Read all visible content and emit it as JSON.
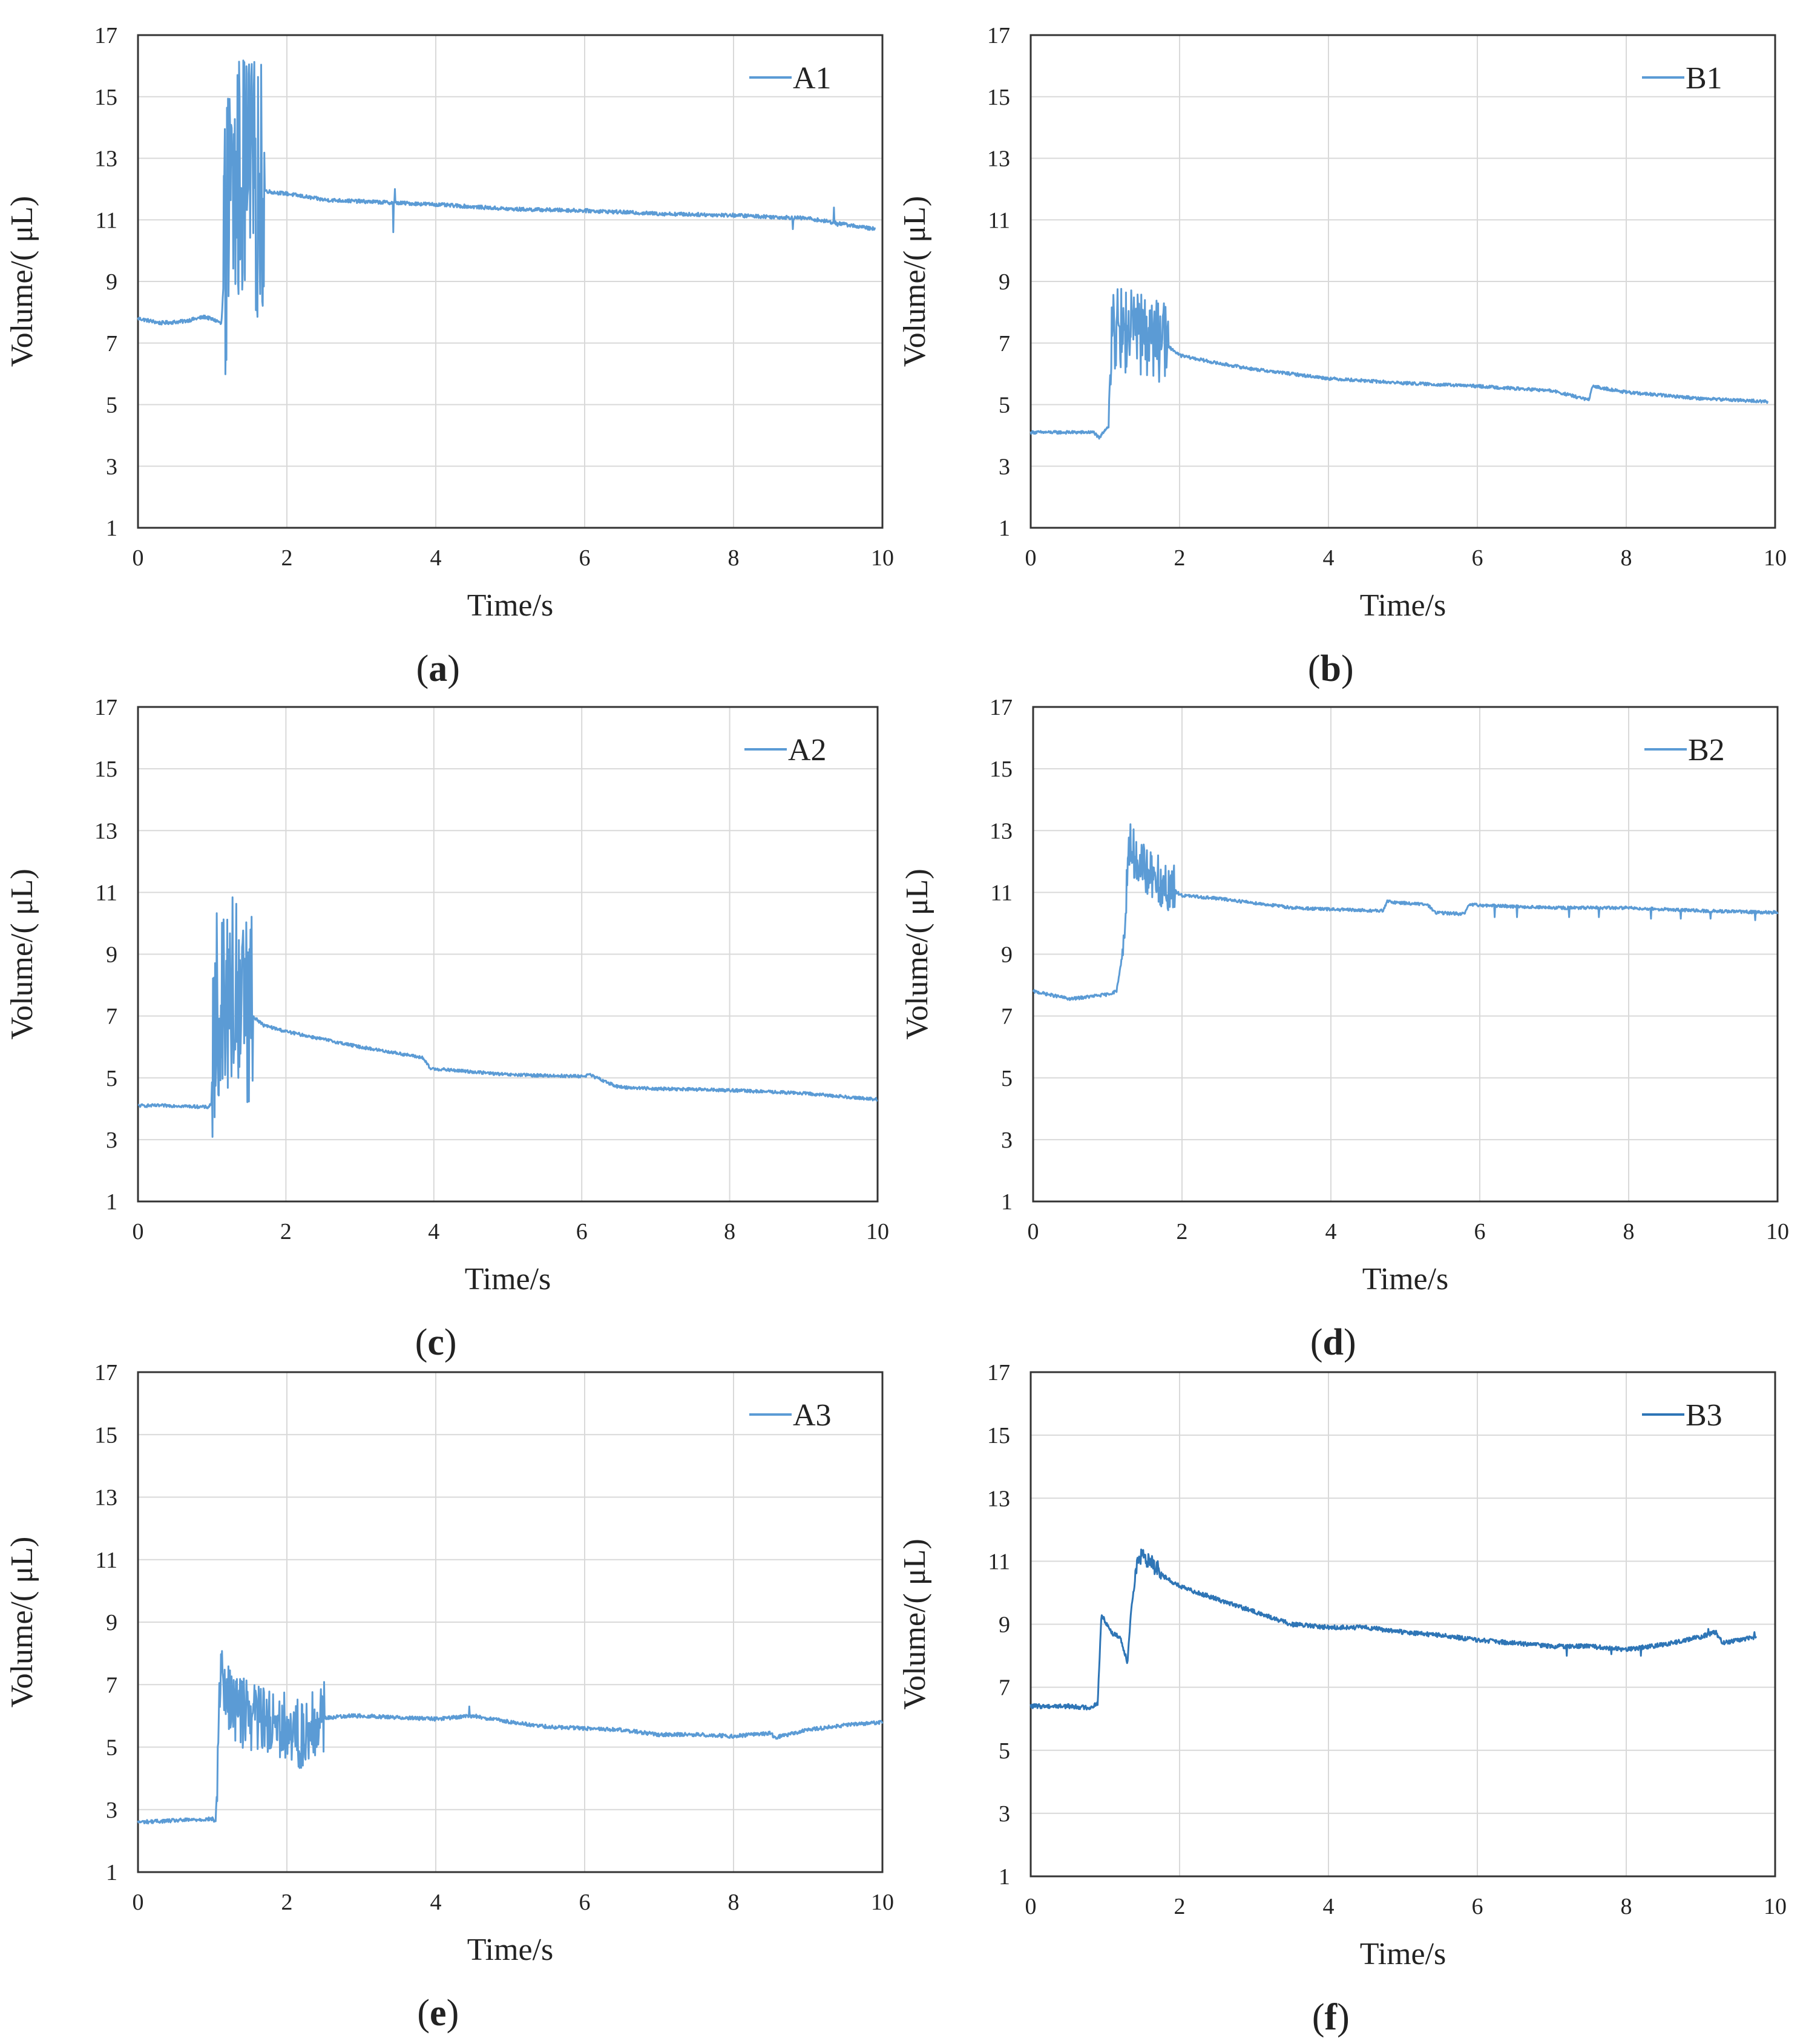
{
  "figure": {
    "panels": [
      {
        "id": "a",
        "caption_open": "(",
        "caption_letter": "a",
        "caption_close": ")"
      },
      {
        "id": "b",
        "caption_open": "(",
        "caption_letter": "b",
        "caption_close": ")"
      },
      {
        "id": "c",
        "caption_open": "(",
        "caption_letter": "c",
        "caption_close": ")"
      },
      {
        "id": "d",
        "caption_open": "(",
        "caption_letter": "d",
        "caption_close": ")"
      },
      {
        "id": "e",
        "caption_open": "(",
        "caption_letter": "e",
        "caption_close": ")"
      },
      {
        "id": "f",
        "caption_open": "(",
        "caption_letter": "f",
        "caption_close": ")"
      }
    ]
  },
  "chart_data": [
    {
      "type": "line",
      "title": "",
      "xlabel": "Time/s",
      "ylabel": "Volume/( μL)",
      "xlim": [
        0,
        10
      ],
      "ylim": [
        1,
        17
      ],
      "xticks": [
        "0",
        "2",
        "4",
        "6",
        "8",
        "10"
      ],
      "yticks": [
        "1",
        "3",
        "5",
        "7",
        "9",
        "11",
        "13",
        "15",
        "17"
      ],
      "grid": true,
      "legend": "top-right",
      "series": [
        {
          "name": "A1",
          "color": "#5b9bd5",
          "noise": 0.06,
          "spike_amp": 4.2,
          "spike_range": [
            1.15,
            1.7
          ],
          "points": [
            [
              0,
              7.8
            ],
            [
              0.3,
              7.65
            ],
            [
              0.6,
              7.7
            ],
            [
              0.9,
              7.85
            ],
            [
              1.08,
              7.7
            ],
            [
              1.12,
              7.6
            ],
            [
              1.2,
              11.2
            ],
            [
              1.4,
              12.5
            ],
            [
              1.6,
              12.0
            ],
            [
              1.8,
              11.9
            ],
            [
              2.0,
              11.85
            ],
            [
              2.5,
              11.65
            ],
            [
              3.0,
              11.6
            ],
            [
              3.5,
              11.55
            ],
            [
              4.0,
              11.5
            ],
            [
              5.0,
              11.35
            ],
            [
              6.0,
              11.3
            ],
            [
              7.0,
              11.2
            ],
            [
              8.0,
              11.15
            ],
            [
              9.0,
              11.05
            ],
            [
              9.5,
              10.85
            ],
            [
              9.9,
              10.7
            ]
          ],
          "glitches": [
            [
              3.43,
              10.6
            ],
            [
              3.45,
              12.0
            ],
            [
              8.8,
              10.7
            ],
            [
              9.35,
              11.4
            ],
            [
              9.4,
              10.8
            ]
          ]
        }
      ]
    },
    {
      "type": "line",
      "title": "",
      "xlabel": "Time/s",
      "ylabel": "Volume/( μL)",
      "xlim": [
        0,
        10
      ],
      "ylim": [
        1,
        17
      ],
      "xticks": [
        "0",
        "2",
        "4",
        "6",
        "8",
        "10"
      ],
      "yticks": [
        "1",
        "3",
        "5",
        "7",
        "9",
        "11",
        "13",
        "15",
        "17"
      ],
      "grid": true,
      "legend": "top-right",
      "series": [
        {
          "name": "B1",
          "color": "#5b9bd5",
          "noise": 0.05,
          "spike_amp": 1.4,
          "spike_range": [
            1.05,
            1.85
          ],
          "points": [
            [
              0,
              4.1
            ],
            [
              0.5,
              4.1
            ],
            [
              0.85,
              4.1
            ],
            [
              0.92,
              3.9
            ],
            [
              1.0,
              4.2
            ],
            [
              1.05,
              4.3
            ],
            [
              1.1,
              7.5
            ],
            [
              1.4,
              7.3
            ],
            [
              1.7,
              7.1
            ],
            [
              1.9,
              6.8
            ],
            [
              2.0,
              6.6
            ],
            [
              2.5,
              6.35
            ],
            [
              3.0,
              6.15
            ],
            [
              3.5,
              6.0
            ],
            [
              4.0,
              5.85
            ],
            [
              5.0,
              5.7
            ],
            [
              6.0,
              5.6
            ],
            [
              7.0,
              5.45
            ],
            [
              7.5,
              5.15
            ],
            [
              7.55,
              5.6
            ],
            [
              8.0,
              5.4
            ],
            [
              9.0,
              5.2
            ],
            [
              9.9,
              5.1
            ]
          ],
          "glitches": []
        }
      ]
    },
    {
      "type": "line",
      "title": "",
      "xlabel": "Time/s",
      "ylabel": "Volume/( μL)",
      "xlim": [
        0,
        10
      ],
      "ylim": [
        1,
        17
      ],
      "xticks": [
        "0",
        "2",
        "4",
        "6",
        "8",
        "10"
      ],
      "yticks": [
        "1",
        "3",
        "5",
        "7",
        "9",
        "11",
        "13",
        "15",
        "17"
      ],
      "grid": true,
      "legend": "top-right",
      "series": [
        {
          "name": "A2",
          "color": "#5b9bd5",
          "noise": 0.05,
          "spike_amp": 3.2,
          "spike_range": [
            1.0,
            1.55
          ],
          "points": [
            [
              0,
              4.1
            ],
            [
              0.5,
              4.1
            ],
            [
              0.95,
              4.05
            ],
            [
              1.0,
              4.2
            ],
            [
              1.05,
              7.5
            ],
            [
              1.3,
              8.0
            ],
            [
              1.5,
              7.1
            ],
            [
              1.7,
              6.7
            ],
            [
              2.0,
              6.5
            ],
            [
              2.5,
              6.25
            ],
            [
              3.0,
              6.0
            ],
            [
              3.5,
              5.8
            ],
            [
              3.85,
              5.65
            ],
            [
              3.95,
              5.3
            ],
            [
              4.5,
              5.2
            ],
            [
              5.0,
              5.1
            ],
            [
              6.0,
              5.05
            ],
            [
              6.1,
              5.1
            ],
            [
              6.5,
              4.7
            ],
            [
              7.0,
              4.65
            ],
            [
              8.0,
              4.6
            ],
            [
              9.0,
              4.5
            ],
            [
              10.0,
              4.3
            ]
          ],
          "glitches": []
        }
      ]
    },
    {
      "type": "line",
      "title": "",
      "xlabel": "Time/s",
      "ylabel": "Volume/( μL)",
      "xlim": [
        0,
        10
      ],
      "ylim": [
        1,
        17
      ],
      "xticks": [
        "0",
        "2",
        "4",
        "6",
        "8",
        "10"
      ],
      "yticks": [
        "1",
        "3",
        "5",
        "7",
        "9",
        "11",
        "13",
        "15",
        "17"
      ],
      "grid": true,
      "legend": "top-right",
      "series": [
        {
          "name": "B2",
          "color": "#5b9bd5",
          "noise": 0.05,
          "spike_amp": 0.8,
          "spike_range": [
            1.2,
            1.9
          ],
          "points": [
            [
              0,
              7.8
            ],
            [
              0.5,
              7.55
            ],
            [
              1.0,
              7.7
            ],
            [
              1.12,
              7.8
            ],
            [
              1.2,
              9.0
            ],
            [
              1.3,
              12.5
            ],
            [
              1.5,
              11.7
            ],
            [
              1.8,
              11.2
            ],
            [
              2.0,
              10.9
            ],
            [
              2.5,
              10.8
            ],
            [
              3.0,
              10.65
            ],
            [
              3.5,
              10.5
            ],
            [
              4.0,
              10.45
            ],
            [
              4.7,
              10.4
            ],
            [
              4.75,
              10.7
            ],
            [
              5.3,
              10.6
            ],
            [
              5.4,
              10.35
            ],
            [
              5.8,
              10.3
            ],
            [
              5.85,
              10.6
            ],
            [
              7.0,
              10.5
            ],
            [
              8.0,
              10.5
            ],
            [
              9.0,
              10.4
            ],
            [
              10.0,
              10.35
            ]
          ],
          "glitches": [
            [
              6.2,
              10.2
            ],
            [
              6.5,
              10.2
            ],
            [
              7.2,
              10.2
            ],
            [
              7.6,
              10.2
            ],
            [
              8.3,
              10.15
            ],
            [
              8.7,
              10.15
            ],
            [
              9.1,
              10.15
            ],
            [
              9.7,
              10.1
            ]
          ]
        }
      ]
    },
    {
      "type": "line",
      "title": "",
      "xlabel": "Time/s",
      "ylabel": "Volume/( μL)",
      "xlim": [
        0,
        10
      ],
      "ylim": [
        1,
        17
      ],
      "xticks": [
        "0",
        "2",
        "4",
        "6",
        "8",
        "10"
      ],
      "yticks": [
        "1",
        "3",
        "5",
        "7",
        "9",
        "11",
        "13",
        "15",
        "17"
      ],
      "grid": true,
      "legend": "top-right",
      "series": [
        {
          "name": "A3",
          "color": "#5b9bd5",
          "noise": 0.06,
          "spike_amp": 1.1,
          "spike_range": [
            1.05,
            2.5
          ],
          "points": [
            [
              0,
              2.6
            ],
            [
              0.5,
              2.65
            ],
            [
              1.0,
              2.7
            ],
            [
              1.05,
              2.6
            ],
            [
              1.1,
              7.2
            ],
            [
              1.3,
              6.2
            ],
            [
              1.6,
              6.0
            ],
            [
              2.0,
              5.7
            ],
            [
              2.2,
              5.3
            ],
            [
              2.4,
              5.9
            ],
            [
              2.8,
              6.0
            ],
            [
              3.0,
              6.0
            ],
            [
              3.5,
              5.95
            ],
            [
              4.0,
              5.9
            ],
            [
              4.5,
              6.0
            ],
            [
              5.0,
              5.8
            ],
            [
              5.5,
              5.65
            ],
            [
              6.0,
              5.6
            ],
            [
              6.5,
              5.55
            ],
            [
              7.0,
              5.4
            ],
            [
              7.5,
              5.4
            ],
            [
              8.0,
              5.35
            ],
            [
              8.5,
              5.45
            ],
            [
              8.55,
              5.3
            ],
            [
              9.0,
              5.55
            ],
            [
              9.5,
              5.7
            ],
            [
              10.0,
              5.8
            ]
          ],
          "glitches": [
            [
              4.45,
              6.3
            ]
          ]
        }
      ]
    },
    {
      "type": "line",
      "title": "",
      "xlabel": "Time/s",
      "ylabel": "Volume/( μL)",
      "xlim": [
        0,
        10
      ],
      "ylim": [
        1,
        17
      ],
      "xticks": [
        "0",
        "2",
        "4",
        "6",
        "8",
        "10"
      ],
      "yticks": [
        "1",
        "3",
        "5",
        "7",
        "9",
        "11",
        "13",
        "15",
        "17"
      ],
      "grid": true,
      "legend": "top-right",
      "series": [
        {
          "name": "B3",
          "color": "#2e75b6",
          "noise": 0.07,
          "spike_amp": 0.25,
          "spike_range": [
            1.4,
            1.75
          ],
          "points": [
            [
              0,
              6.4
            ],
            [
              0.5,
              6.4
            ],
            [
              0.8,
              6.35
            ],
            [
              0.9,
              6.5
            ],
            [
              0.95,
              9.3
            ],
            [
              1.1,
              8.7
            ],
            [
              1.2,
              8.6
            ],
            [
              1.3,
              7.8
            ],
            [
              1.35,
              9.5
            ],
            [
              1.45,
              11.2
            ],
            [
              1.6,
              11.0
            ],
            [
              1.8,
              10.5
            ],
            [
              2.0,
              10.2
            ],
            [
              2.5,
              9.8
            ],
            [
              3.0,
              9.4
            ],
            [
              3.5,
              9.0
            ],
            [
              4.0,
              8.9
            ],
            [
              4.5,
              8.9
            ],
            [
              5.0,
              8.75
            ],
            [
              5.5,
              8.65
            ],
            [
              6.0,
              8.5
            ],
            [
              6.5,
              8.4
            ],
            [
              7.0,
              8.3
            ],
            [
              7.5,
              8.3
            ],
            [
              8.0,
              8.2
            ],
            [
              8.5,
              8.35
            ],
            [
              9.0,
              8.6
            ],
            [
              9.2,
              8.75
            ],
            [
              9.3,
              8.4
            ],
            [
              9.5,
              8.5
            ],
            [
              9.75,
              8.6
            ]
          ],
          "glitches": [
            [
              7.2,
              8.0
            ],
            [
              7.8,
              8.05
            ],
            [
              8.2,
              8.0
            ],
            [
              9.1,
              8.85
            ],
            [
              9.72,
              8.75
            ]
          ]
        }
      ]
    }
  ]
}
